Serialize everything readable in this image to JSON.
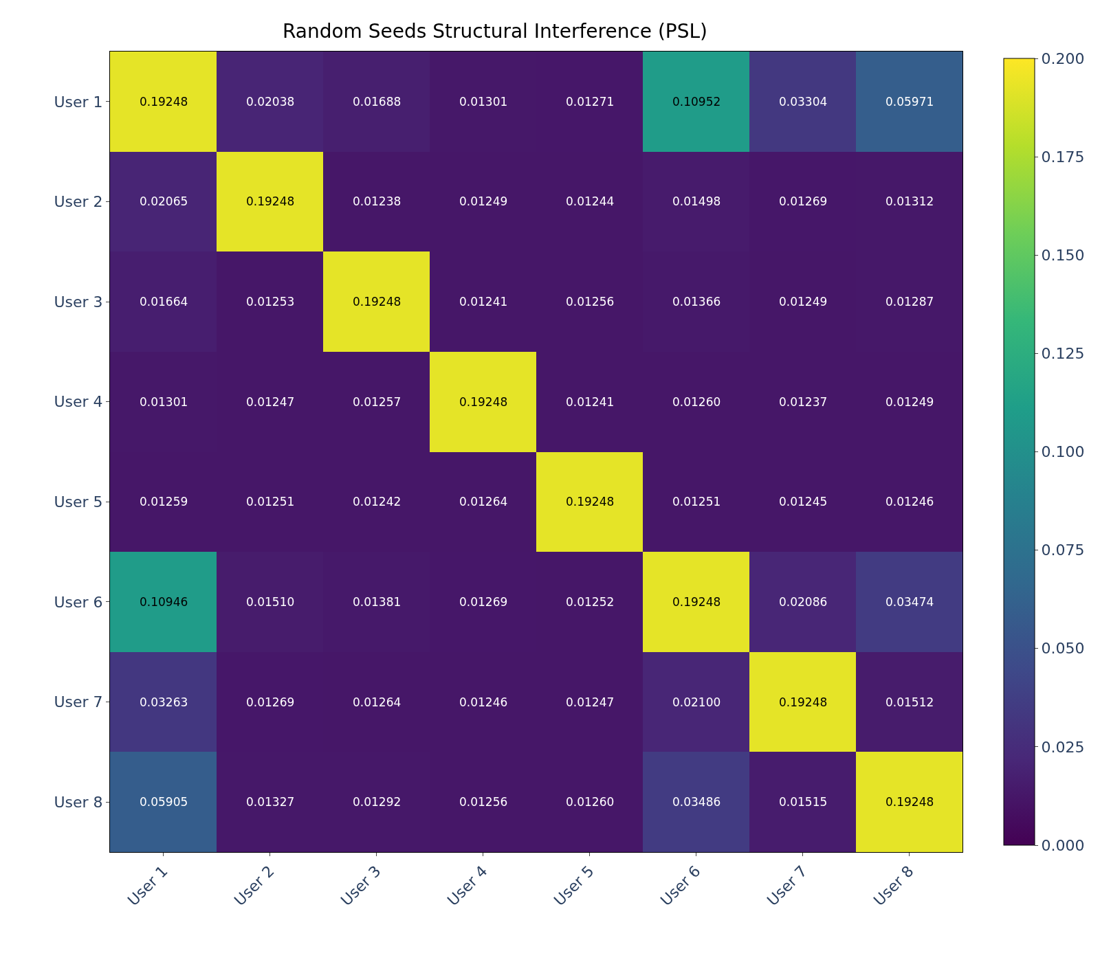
{
  "chart_data": {
    "type": "heatmap",
    "title": "Random Seeds Structural Interference (PSL)",
    "categories": [
      "User 1",
      "User 2",
      "User 3",
      "User 4",
      "User 5",
      "User 6",
      "User 7",
      "User 8"
    ],
    "y_categories": [
      "User 1",
      "User 2",
      "User 3",
      "User 4",
      "User 5",
      "User 6",
      "User 7",
      "User 8"
    ],
    "cells": [
      [
        0.19248,
        0.02038,
        0.01688,
        0.01301,
        0.01271,
        0.10952,
        0.03304,
        0.05971
      ],
      [
        0.02065,
        0.19248,
        0.01238,
        0.01249,
        0.01244,
        0.01498,
        0.01269,
        0.01312
      ],
      [
        0.01664,
        0.01253,
        0.19248,
        0.01241,
        0.01256,
        0.01366,
        0.01249,
        0.01287
      ],
      [
        0.01301,
        0.01247,
        0.01257,
        0.19248,
        0.01241,
        0.0126,
        0.01237,
        0.01249
      ],
      [
        0.01259,
        0.01251,
        0.01242,
        0.01264,
        0.19248,
        0.01251,
        0.01245,
        0.01246
      ],
      [
        0.10946,
        0.0151,
        0.01381,
        0.01269,
        0.01252,
        0.19248,
        0.02086,
        0.03474
      ],
      [
        0.03263,
        0.01269,
        0.01264,
        0.01246,
        0.01247,
        0.021,
        0.19248,
        0.01512
      ],
      [
        0.05905,
        0.01327,
        0.01292,
        0.01256,
        0.0126,
        0.03486,
        0.01515,
        0.19248
      ]
    ],
    "cell_labels": [
      [
        "0.19248",
        "0.02038",
        "0.01688",
        "0.01301",
        "0.01271",
        "0.10952",
        "0.03304",
        "0.05971"
      ],
      [
        "0.02065",
        "0.19248",
        "0.01238",
        "0.01249",
        "0.01244",
        "0.01498",
        "0.01269",
        "0.01312"
      ],
      [
        "0.01664",
        "0.01253",
        "0.19248",
        "0.01241",
        "0.01256",
        "0.01366",
        "0.01249",
        "0.01287"
      ],
      [
        "0.01301",
        "0.01247",
        "0.01257",
        "0.19248",
        "0.01241",
        "0.01260",
        "0.01237",
        "0.01249"
      ],
      [
        "0.01259",
        "0.01251",
        "0.01242",
        "0.01264",
        "0.19248",
        "0.01251",
        "0.01245",
        "0.01246"
      ],
      [
        "0.10946",
        "0.01510",
        "0.01381",
        "0.01269",
        "0.01252",
        "0.19248",
        "0.02086",
        "0.03474"
      ],
      [
        "0.03263",
        "0.01269",
        "0.01264",
        "0.01246",
        "0.01247",
        "0.02100",
        "0.19248",
        "0.01512"
      ],
      [
        "0.05905",
        "0.01327",
        "0.01292",
        "0.01256",
        "0.01260",
        "0.03486",
        "0.01515",
        "0.19248"
      ]
    ],
    "clim": [
      0,
      0.2
    ],
    "cticks": [
      {
        "value": 0,
        "label": "0.000"
      },
      {
        "value": 0.025,
        "label": "0.025"
      },
      {
        "value": 0.05,
        "label": "0.050"
      },
      {
        "value": 0.075,
        "label": "0.075"
      },
      {
        "value": 0.1,
        "label": "0.100"
      },
      {
        "value": 0.125,
        "label": "0.125"
      },
      {
        "value": 0.15,
        "label": "0.150"
      },
      {
        "value": 0.175,
        "label": "0.175"
      },
      {
        "value": 0.2,
        "label": "0.200"
      }
    ]
  }
}
